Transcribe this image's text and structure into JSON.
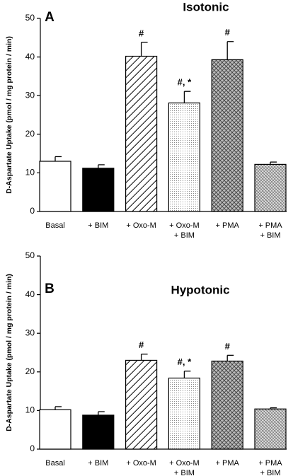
{
  "chart_data": [
    {
      "type": "bar",
      "panel": "A",
      "title": "Isotonic",
      "ylabel": "D-Aspartate Uptake (pmol / mg protein / min)",
      "categories": [
        [
          "Basal"
        ],
        [
          "+ BIM"
        ],
        [
          "+ Oxo-M"
        ],
        [
          "+ Oxo-M",
          "+ BIM"
        ],
        [
          "+ PMA"
        ],
        [
          "+ PMA",
          "+ BIM"
        ]
      ],
      "values": [
        13.0,
        11.2,
        40.2,
        28.1,
        39.3,
        12.2
      ],
      "errors": [
        1.2,
        0.9,
        3.6,
        3.0,
        4.7,
        0.6
      ],
      "annotations": [
        null,
        null,
        "#",
        "#, *",
        "#",
        null
      ],
      "fills": [
        "white",
        "black",
        "hatch",
        "dots",
        "crosshatch",
        "grid"
      ],
      "ylim": [
        0,
        50
      ],
      "yticks": [
        0,
        10,
        20,
        30,
        40,
        50
      ]
    },
    {
      "type": "bar",
      "panel": "B",
      "title": "Hypotonic",
      "ylabel": "D-Aspartate Uptake (pmol / mg protein / min)",
      "categories": [
        [
          "Basal"
        ],
        [
          "+ BIM"
        ],
        [
          "+ Oxo-M"
        ],
        [
          "+ Oxo-M",
          "+ BIM"
        ],
        [
          "+ PMA"
        ],
        [
          "+ PMA",
          "+ BIM"
        ]
      ],
      "values": [
        10.2,
        8.8,
        23.0,
        18.4,
        22.8,
        10.4
      ],
      "errors": [
        0.8,
        0.9,
        1.6,
        1.8,
        1.5,
        0.3
      ],
      "annotations": [
        null,
        null,
        "#",
        "#, *",
        "#",
        null
      ],
      "fills": [
        "white",
        "black",
        "hatch",
        "dots",
        "crosshatch",
        "grid"
      ],
      "ylim": [
        0,
        50
      ],
      "yticks": [
        0,
        10,
        20,
        30,
        40,
        50
      ]
    }
  ]
}
